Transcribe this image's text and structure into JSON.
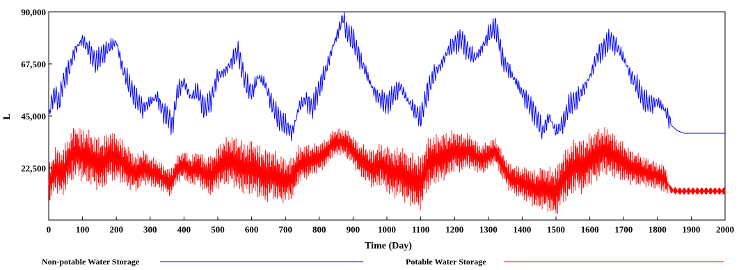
{
  "chart_data": {
    "type": "line",
    "title": "",
    "xlabel": "Time (Day)",
    "ylabel": "L",
    "xlim": [
      0,
      2000
    ],
    "ylim": [
      0,
      90000
    ],
    "x_ticks": [
      0,
      100,
      200,
      300,
      400,
      500,
      600,
      700,
      800,
      900,
      1000,
      1100,
      1200,
      1300,
      1400,
      1500,
      1600,
      1700,
      1800,
      1900,
      2000
    ],
    "x_tick_labels": [
      "0",
      "100",
      "200",
      "300",
      "400",
      "500",
      "600",
      "700",
      "800",
      "900",
      "1000",
      "1100",
      "1200",
      "1300",
      "1400",
      "1500",
      "1600",
      "1700",
      "1800",
      "1900",
      "2000"
    ],
    "y_ticks": [
      22500,
      45000,
      67500,
      90000
    ],
    "y_tick_labels": [
      "22,500",
      "45,000",
      "67,500",
      "90,000"
    ],
    "grid": false,
    "legend_position": "bottom",
    "series": [
      {
        "name": "Non-potable Water Storage",
        "color": "#0000ff",
        "x": [
          0,
          10,
          20,
          30,
          40,
          50,
          60,
          80,
          100,
          120,
          140,
          160,
          180,
          200,
          220,
          240,
          260,
          280,
          300,
          320,
          340,
          360,
          365,
          380,
          400,
          420,
          440,
          460,
          480,
          500,
          520,
          540,
          560,
          580,
          600,
          620,
          640,
          660,
          680,
          700,
          720,
          730,
          740,
          760,
          780,
          800,
          820,
          840,
          860,
          870,
          880,
          900,
          920,
          940,
          960,
          980,
          1000,
          1020,
          1040,
          1060,
          1080,
          1100,
          1120,
          1140,
          1160,
          1180,
          1200,
          1220,
          1240,
          1260,
          1280,
          1300,
          1320,
          1330,
          1340,
          1360,
          1380,
          1400,
          1420,
          1440,
          1450,
          1460,
          1480,
          1500,
          1520,
          1540,
          1560,
          1580,
          1600,
          1620,
          1640,
          1660,
          1680,
          1700,
          1720,
          1740,
          1760,
          1780,
          1800,
          1820,
          1830,
          1840,
          1860,
          1880,
          1900,
          1920,
          1960,
          2000
        ],
        "values": [
          45000,
          52000,
          55000,
          50000,
          58000,
          62000,
          65000,
          74000,
          78000,
          73000,
          68000,
          72000,
          75000,
          77000,
          65000,
          58000,
          52000,
          48000,
          51000,
          53000,
          46000,
          43000,
          40000,
          55000,
          60000,
          53000,
          56000,
          48000,
          52000,
          62000,
          64000,
          68000,
          73000,
          60000,
          55000,
          62000,
          59000,
          50000,
          44000,
          41000,
          37500,
          43000,
          49000,
          52000,
          48000,
          57000,
          65000,
          75000,
          83000,
          88000,
          82000,
          78000,
          70000,
          63000,
          56000,
          52000,
          50000,
          54000,
          58000,
          52000,
          48000,
          44000,
          56000,
          63000,
          67000,
          73000,
          76000,
          78000,
          73000,
          70000,
          74000,
          80000,
          84000,
          79000,
          70000,
          65000,
          60000,
          55000,
          50000,
          45000,
          42000,
          38000,
          45000,
          38000,
          42000,
          50000,
          52000,
          56000,
          62000,
          70000,
          74000,
          78000,
          75000,
          70000,
          63000,
          58000,
          52000,
          50000,
          51000,
          48000,
          45000,
          41000,
          38500,
          37500,
          37500,
          37500,
          37500,
          37500
        ]
      },
      {
        "name": "Potable Water Storage",
        "color": "#ff0000",
        "x": [
          0,
          20,
          40,
          60,
          80,
          100,
          120,
          140,
          160,
          180,
          200,
          220,
          240,
          260,
          280,
          300,
          320,
          340,
          360,
          380,
          400,
          420,
          440,
          460,
          480,
          500,
          520,
          540,
          560,
          580,
          600,
          620,
          640,
          660,
          680,
          700,
          720,
          740,
          760,
          780,
          800,
          820,
          840,
          860,
          880,
          900,
          920,
          940,
          960,
          980,
          1000,
          1020,
          1040,
          1060,
          1080,
          1100,
          1120,
          1140,
          1160,
          1180,
          1200,
          1220,
          1240,
          1260,
          1280,
          1300,
          1320,
          1340,
          1360,
          1380,
          1400,
          1420,
          1440,
          1460,
          1480,
          1500,
          1520,
          1540,
          1560,
          1580,
          1600,
          1620,
          1640,
          1660,
          1680,
          1700,
          1720,
          1740,
          1760,
          1780,
          1800,
          1820,
          1830,
          1840,
          1860,
          1880,
          1900,
          1920,
          1960,
          2000
        ],
        "values": [
          15000,
          22000,
          20000,
          26000,
          30000,
          28000,
          27000,
          25000,
          24000,
          28000,
          27000,
          25000,
          22000,
          20000,
          23000,
          21000,
          20000,
          18000,
          16000,
          22000,
          24000,
          21000,
          23000,
          20000,
          19000,
          23000,
          25000,
          26000,
          24000,
          22000,
          23000,
          21000,
          19000,
          20000,
          18000,
          17000,
          18000,
          24000,
          25000,
          26000,
          27000,
          29000,
          33000,
          34000,
          33000,
          30000,
          26000,
          24000,
          22000,
          24000,
          22000,
          20000,
          21000,
          18000,
          17000,
          16000,
          24000,
          26000,
          27000,
          28000,
          30000,
          29000,
          30000,
          28000,
          26000,
          28000,
          30000,
          24000,
          19000,
          17000,
          16000,
          15000,
          13000,
          14000,
          13000,
          12000,
          18000,
          21000,
          24000,
          23000,
          26000,
          28000,
          30000,
          29000,
          27000,
          25000,
          23000,
          22000,
          21000,
          20000,
          19000,
          18000,
          16000,
          13000,
          12500,
          12500,
          12500,
          12500,
          12500,
          12500
        ]
      }
    ]
  }
}
